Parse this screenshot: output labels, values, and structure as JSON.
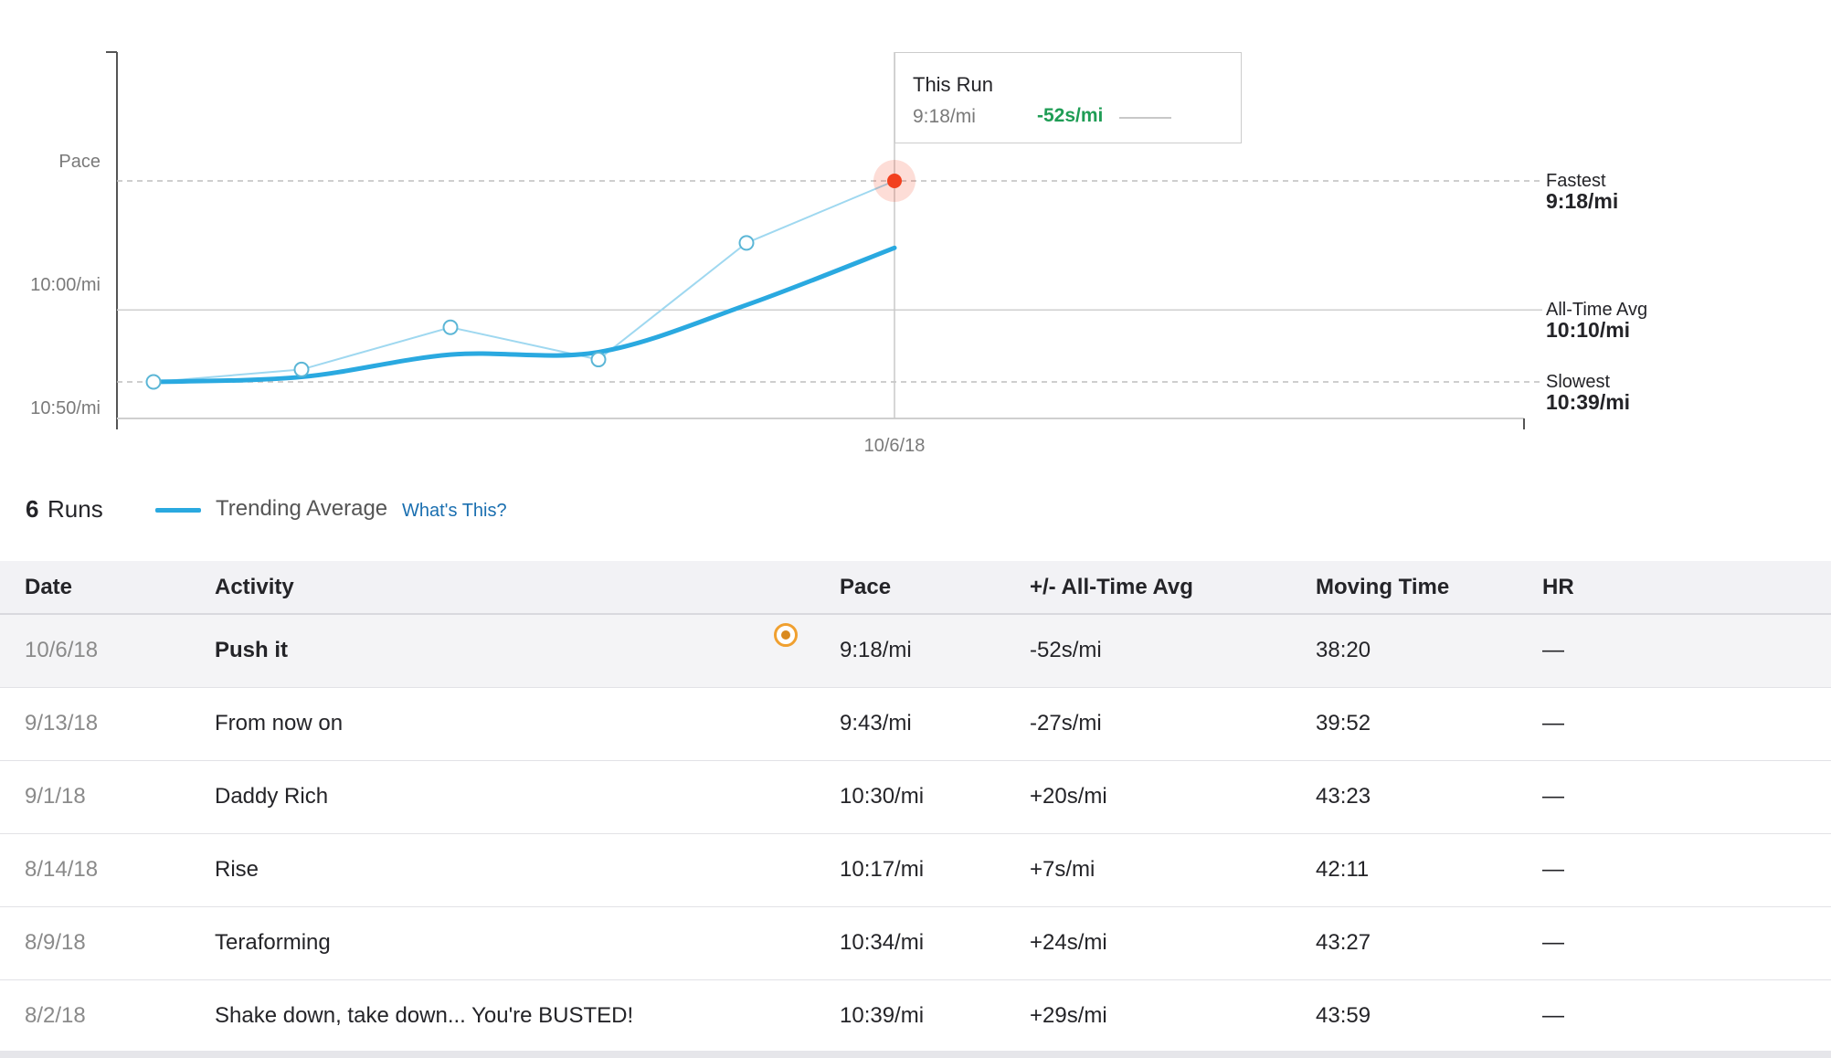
{
  "chart_data": {
    "type": "line",
    "ylabel": "Pace",
    "y_ticks": [
      "10:00/mi",
      "10:50/mi"
    ],
    "x_ticks": [
      "10/6/18"
    ],
    "series": [
      {
        "name": "Trending Average",
        "role": "trend",
        "color": "#2aa9e0",
        "x": [
          "8/2/18",
          "8/9/18",
          "8/14/18",
          "9/1/18",
          "9/13/18",
          "10/6/18"
        ],
        "y_seconds_per_mi": [
          639,
          637,
          628,
          627,
          608,
          585
        ]
      },
      {
        "role": "runs",
        "color": "#9fd8f0",
        "x": [
          "8/2/18",
          "8/9/18",
          "8/14/18",
          "9/1/18",
          "9/13/18",
          "10/6/18"
        ],
        "y_seconds_per_mi": [
          639,
          634,
          617,
          630,
          583,
          558
        ]
      }
    ],
    "highlight": {
      "x": "10/6/18",
      "y_seconds_per_mi": 558,
      "color": "#f2401f"
    },
    "reference_lines": [
      {
        "label": "Fastest",
        "value": "9:18/mi",
        "y_seconds_per_mi": 558,
        "style": "dashed"
      },
      {
        "label": "All-Time Avg",
        "value": "10:10/mi",
        "y_seconds_per_mi": 610,
        "style": "solid"
      },
      {
        "label": "Slowest",
        "value": "10:39/mi",
        "y_seconds_per_mi": 639,
        "style": "dashed"
      }
    ],
    "tooltip": {
      "title": "This Run",
      "pace": "9:18/mi",
      "delta": "-52s/mi"
    }
  },
  "summary": {
    "count": "6",
    "count_label": "Runs",
    "trend_label": "Trending Average",
    "whats_this": "What's This?"
  },
  "table": {
    "headers": [
      "Date",
      "Activity",
      "Pace",
      "+/- All-Time Avg",
      "Moving Time",
      "HR"
    ],
    "rows": [
      [
        "10/6/18",
        "Push it",
        "9:18/mi",
        "-52s/mi",
        "38:20",
        "—"
      ],
      [
        "9/13/18",
        "From now on",
        "9:43/mi",
        "-27s/mi",
        "39:52",
        "—"
      ],
      [
        "9/1/18",
        "Daddy Rich",
        "10:30/mi",
        "+20s/mi",
        "43:23",
        "—"
      ],
      [
        "8/14/18",
        "Rise",
        "10:17/mi",
        "+7s/mi",
        "42:11",
        "—"
      ],
      [
        "8/9/18",
        "Teraforming",
        "10:34/mi",
        "+24s/mi",
        "43:27",
        "—"
      ],
      [
        "8/2/18",
        "Shake down, take down... You're BUSTED!",
        "10:39/mi",
        "+29s/mi",
        "43:59",
        "—"
      ]
    ]
  },
  "colors": {
    "accent": "#2aa9e0",
    "highlight": "#f2401f",
    "positive": "#1f9d55",
    "badge": "#f0a030",
    "link": "#1a6fb0"
  }
}
